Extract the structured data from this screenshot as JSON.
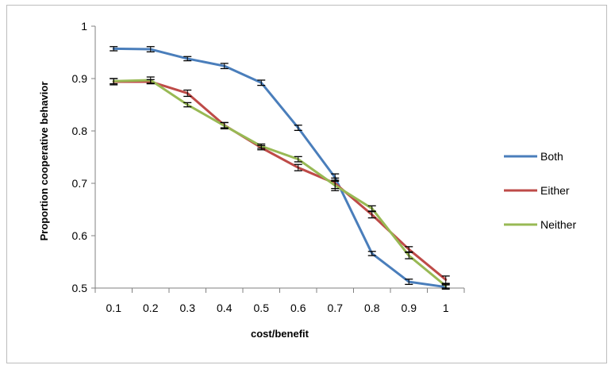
{
  "chart_data": {
    "type": "line",
    "title": "",
    "xlabel": "cost/benefit",
    "ylabel": "Proportion cooperative behavior",
    "x": [
      0.1,
      0.2,
      0.3,
      0.4,
      0.5,
      0.6,
      0.7,
      0.8,
      0.9,
      1
    ],
    "x_tick_labels": [
      "0.1",
      "0.2",
      "0.3",
      "0.4",
      "0.5",
      "0.6",
      "0.7",
      "0.8",
      "0.9",
      "1"
    ],
    "y_ticks": [
      0.5,
      0.6,
      0.7,
      0.8,
      0.9,
      1
    ],
    "y_tick_labels": [
      "0.5",
      "0.6",
      "0.7",
      "0.8",
      "0.9",
      "1"
    ],
    "ylim": [
      0.5,
      1
    ],
    "grid": false,
    "legend_position": "right",
    "series": [
      {
        "name": "Both",
        "color": "#4a7ebb",
        "values": [
          0.957,
          0.956,
          0.938,
          0.924,
          0.892,
          0.806,
          0.711,
          0.566,
          0.512,
          0.502
        ],
        "errors": [
          0.004,
          0.005,
          0.004,
          0.005,
          0.005,
          0.005,
          0.007,
          0.004,
          0.005,
          0.004
        ]
      },
      {
        "name": "Either",
        "color": "#be4b48",
        "values": [
          0.894,
          0.894,
          0.872,
          0.811,
          0.768,
          0.73,
          0.7,
          0.64,
          0.574,
          0.516
        ],
        "errors": [
          0.006,
          0.004,
          0.006,
          0.005,
          0.004,
          0.006,
          0.01,
          0.006,
          0.005,
          0.007
        ]
      },
      {
        "name": "Neither",
        "color": "#98b954",
        "values": [
          0.895,
          0.897,
          0.85,
          0.81,
          0.771,
          0.746,
          0.696,
          0.652,
          0.562,
          0.504
        ],
        "errors": [
          0.005,
          0.006,
          0.004,
          0.006,
          0.004,
          0.005,
          0.01,
          0.005,
          0.006,
          0.004
        ]
      }
    ]
  }
}
